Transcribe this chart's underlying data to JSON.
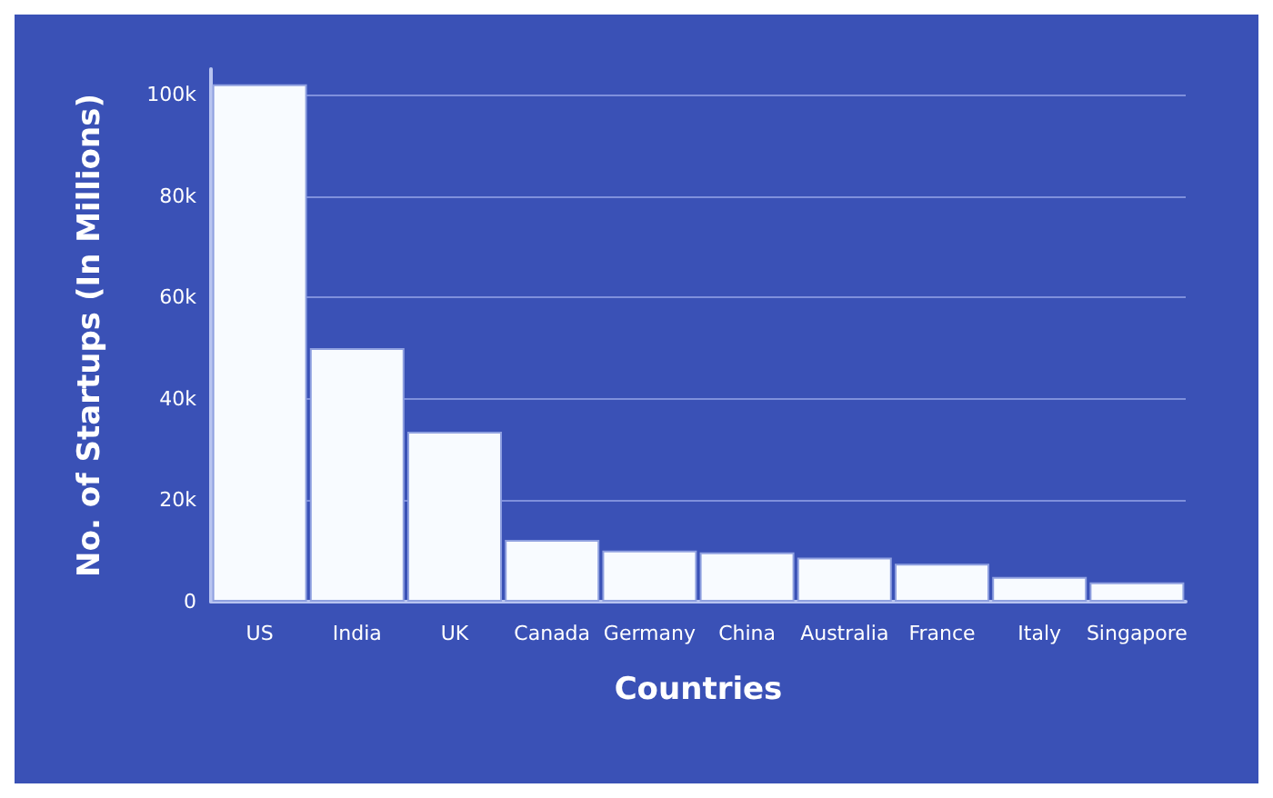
{
  "chart_data": {
    "type": "bar",
    "xlabel": "Countries",
    "ylabel": "No. of Startups (In Millions)",
    "categories": [
      "US",
      "India",
      "UK",
      "Canada",
      "Germany",
      "China",
      "Australia",
      "France",
      "Italy",
      "Singapore"
    ],
    "values": [
      102000,
      50000,
      33500,
      12200,
      10100,
      9700,
      8700,
      7500,
      4900,
      3800
    ],
    "color": "#f8fbff",
    "ylim": [
      0,
      105000
    ],
    "yticks": [
      0,
      {
        "value": 20000,
        "label": "20k"
      },
      {
        "value": 40000,
        "label": "40k"
      },
      {
        "value": 60000,
        "label": "60k"
      },
      {
        "value": 80000,
        "label": "80k"
      },
      {
        "value": 100000,
        "label": "100k"
      }
    ],
    "grid": "y"
  }
}
